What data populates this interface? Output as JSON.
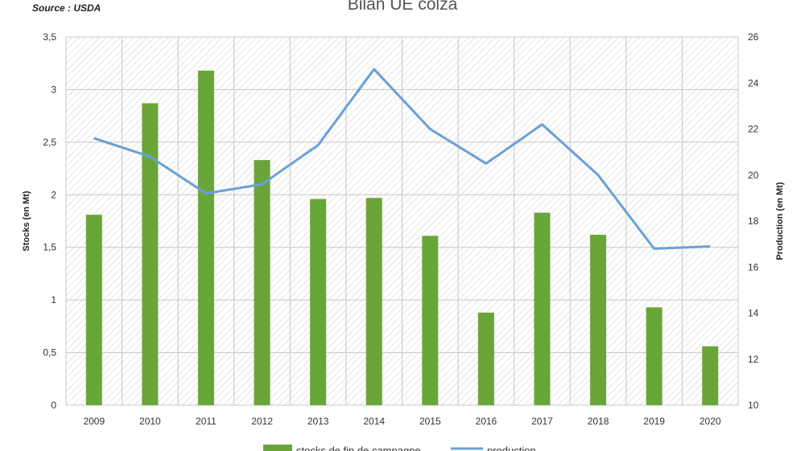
{
  "header": {
    "source": "Source : USDA",
    "title": "Bilan UE colza"
  },
  "chart_data": {
    "type": "bar",
    "title": "Bilan UE colza",
    "categories": [
      "2009",
      "2010",
      "2011",
      "2012",
      "2013",
      "2014",
      "2015",
      "2016",
      "2017",
      "2018",
      "2019",
      "2020"
    ],
    "series": [
      {
        "name": "stocks de fin de campagne",
        "type": "bar",
        "axis": "left",
        "color": "#6aa53a",
        "values": [
          1.81,
          2.87,
          3.18,
          2.33,
          1.96,
          1.97,
          1.61,
          0.88,
          1.83,
          1.62,
          0.93,
          0.56
        ]
      },
      {
        "name": "production",
        "type": "line",
        "axis": "right",
        "color": "#6aa0d8",
        "values": [
          21.6,
          20.8,
          19.2,
          19.6,
          21.3,
          24.6,
          22.0,
          20.5,
          22.2,
          20.0,
          16.8,
          16.9
        ]
      }
    ],
    "y_left": {
      "label": "Stocks (en Mt)",
      "min": 0,
      "max": 3.5,
      "ticks": [
        "0",
        "0,5",
        "1",
        "1,5",
        "2",
        "2,5",
        "3",
        "3,5"
      ]
    },
    "y_right": {
      "label": "Production  (en Mt)",
      "min": 10,
      "max": 26,
      "ticks": [
        "10",
        "12",
        "14",
        "16",
        "18",
        "20",
        "22",
        "24",
        "26"
      ]
    },
    "grid": true,
    "legend_position": "bottom",
    "legend": [
      "stocks de fin de campagne",
      "production"
    ]
  }
}
